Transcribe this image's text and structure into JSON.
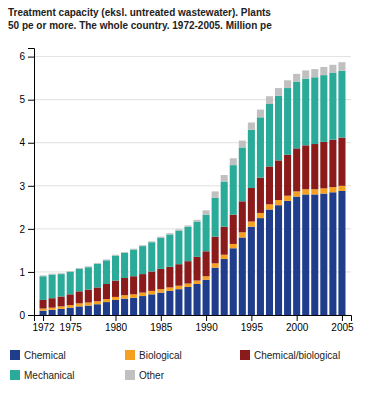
{
  "chart_data": {
    "type": "bar",
    "stacked": true,
    "title": "Treatment capacity (eksl. untreated wastewater). Plants\n50 pe or more. The whole country. 1972-2005. Million pe",
    "x": [
      1972,
      1973,
      1974,
      1975,
      1976,
      1977,
      1978,
      1979,
      1980,
      1981,
      1982,
      1983,
      1984,
      1985,
      1986,
      1987,
      1988,
      1989,
      1990,
      1991,
      1992,
      1993,
      1994,
      1995,
      1996,
      1997,
      1998,
      1999,
      2000,
      2001,
      2002,
      2003,
      2004,
      2005
    ],
    "series": [
      {
        "name": "Chemical",
        "color": "#1f3d8a",
        "values": [
          0.1,
          0.12,
          0.14,
          0.17,
          0.2,
          0.22,
          0.25,
          0.3,
          0.35,
          0.38,
          0.4,
          0.44,
          0.48,
          0.52,
          0.56,
          0.6,
          0.65,
          0.72,
          0.82,
          1.1,
          1.3,
          1.55,
          1.8,
          2.05,
          2.25,
          2.45,
          2.55,
          2.65,
          2.75,
          2.8,
          2.8,
          2.82,
          2.85,
          2.88
        ]
      },
      {
        "name": "Biological",
        "color": "#f5a020",
        "values": [
          0.05,
          0.05,
          0.06,
          0.06,
          0.07,
          0.07,
          0.07,
          0.07,
          0.07,
          0.08,
          0.08,
          0.08,
          0.08,
          0.08,
          0.08,
          0.08,
          0.08,
          0.08,
          0.08,
          0.1,
          0.1,
          0.1,
          0.12,
          0.12,
          0.12,
          0.12,
          0.12,
          0.12,
          0.12,
          0.12,
          0.12,
          0.12,
          0.12,
          0.12
        ]
      },
      {
        "name": "Chemical/biological",
        "color": "#8b1a1a",
        "values": [
          0.2,
          0.22,
          0.23,
          0.25,
          0.28,
          0.3,
          0.32,
          0.35,
          0.38,
          0.4,
          0.42,
          0.43,
          0.45,
          0.47,
          0.48,
          0.5,
          0.52,
          0.55,
          0.58,
          0.62,
          0.65,
          0.68,
          0.72,
          0.78,
          0.82,
          0.88,
          0.92,
          0.95,
          1.0,
          1.02,
          1.05,
          1.08,
          1.1,
          1.12
        ]
      },
      {
        "name": "Mechanical",
        "color": "#2aaa98",
        "values": [
          0.55,
          0.55,
          0.52,
          0.52,
          0.52,
          0.52,
          0.55,
          0.55,
          0.58,
          0.58,
          0.62,
          0.65,
          0.68,
          0.72,
          0.75,
          0.78,
          0.8,
          0.82,
          0.85,
          0.9,
          1.05,
          1.15,
          1.25,
          1.35,
          1.4,
          1.45,
          1.5,
          1.55,
          1.55,
          1.55,
          1.55,
          1.55,
          1.55,
          1.55
        ]
      },
      {
        "name": "Other",
        "color": "#c0c0c0",
        "values": [
          0.02,
          0.02,
          0.02,
          0.02,
          0.02,
          0.02,
          0.02,
          0.02,
          0.02,
          0.02,
          0.02,
          0.02,
          0.02,
          0.03,
          0.03,
          0.03,
          0.03,
          0.04,
          0.1,
          0.15,
          0.15,
          0.16,
          0.16,
          0.17,
          0.18,
          0.18,
          0.18,
          0.18,
          0.18,
          0.19,
          0.19,
          0.19,
          0.19,
          0.2
        ]
      }
    ],
    "xlim": [
      1971,
      2006
    ],
    "xticks": [
      1972,
      1975,
      1980,
      1985,
      1990,
      1995,
      2000,
      2005
    ],
    "ylim": [
      0,
      6.2
    ],
    "yticks": [
      0,
      1,
      2,
      3,
      4,
      5,
      6
    ],
    "grid": true,
    "legend": "bottom"
  }
}
